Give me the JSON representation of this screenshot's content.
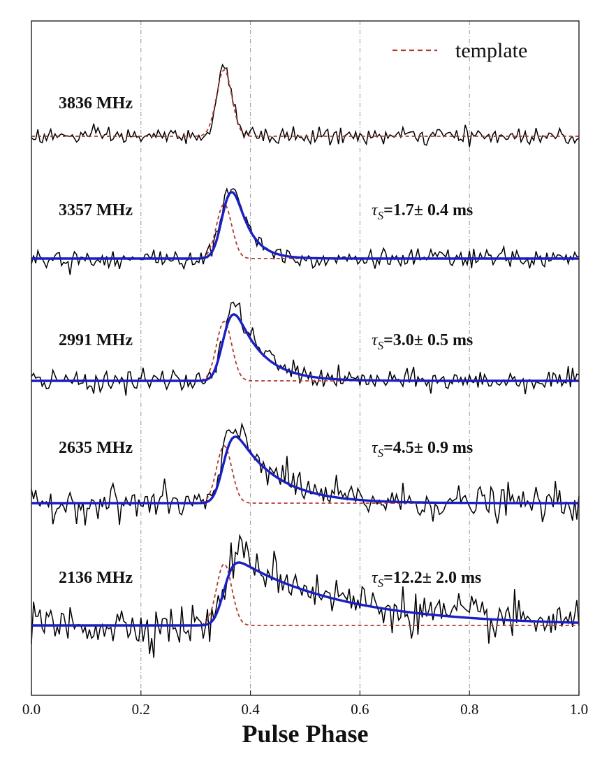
{
  "chart_data": {
    "type": "line",
    "xlabel": "Pulse Phase",
    "ylabel": "",
    "xlim": [
      0.0,
      1.0
    ],
    "x_ticks": [
      "0.0",
      "0.2",
      "0.4",
      "0.6",
      "0.8",
      "1.0"
    ],
    "grid": "vertical dash-dot lines at x ticks",
    "legend": {
      "position": "top-right",
      "entries": [
        {
          "label": "template",
          "style": "dashed",
          "color": "#b03a2e"
        }
      ]
    },
    "colors": {
      "data": "#000000",
      "template": "#b03a2e",
      "fit": "#1a1fc4"
    },
    "template_profile": {
      "type": "gaussian",
      "center_phase": 0.352,
      "sigma_phase": 0.014
    },
    "panels": [
      {
        "frequency": "3836 MHz",
        "tau": "",
        "tau_ms": null,
        "noise_rms": 0.11,
        "fit": false
      },
      {
        "frequency": "3357 MHz",
        "tau": "τ",
        "tau_sub": "S",
        "tau_value": "=1.7± 0.4 ms",
        "tau_ms": 1.7,
        "noise_rms": 0.13,
        "fit": true
      },
      {
        "frequency": "2991 MHz",
        "tau": "τ",
        "tau_sub": "S",
        "tau_value": "=3.0± 0.5 ms",
        "tau_ms": 3.0,
        "noise_rms": 0.14,
        "fit": true
      },
      {
        "frequency": "2635 MHz",
        "tau": "τ",
        "tau_sub": "S",
        "tau_value": "=4.5± 0.9 ms",
        "tau_ms": 4.5,
        "noise_rms": 0.22,
        "fit": true
      },
      {
        "frequency": "2136 MHz",
        "tau": "τ",
        "tau_sub": "S",
        "tau_value": "=12.2± 2.0 ms",
        "tau_ms": 12.2,
        "noise_rms": 0.28,
        "fit": true
      }
    ]
  }
}
